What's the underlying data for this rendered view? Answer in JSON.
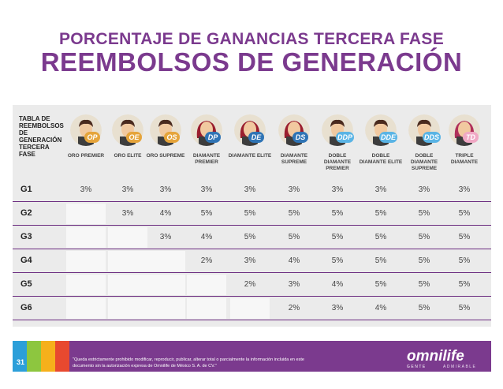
{
  "title": {
    "line1": "PORCENTAJE DE GANANCIAS TERCERA FASE",
    "line2": "REEMBOLSOS DE GENERACIÓN"
  },
  "table": {
    "corner_label": "TABLA DE REEMBOLSOS DE GENERACIÓN TERCERA FASE",
    "columns": [
      {
        "badge": "OP",
        "label": "ORO PREMIER",
        "avatar": "man-icon",
        "color": "#e5a43b"
      },
      {
        "badge": "OE",
        "label": "ORO ELITE",
        "avatar": "man-icon",
        "color": "#e5a43b"
      },
      {
        "badge": "OS",
        "label": "ORO SUPREME",
        "avatar": "man-icon",
        "color": "#e5a43b"
      },
      {
        "badge": "DP",
        "label": "DIAMANTE PREMIER",
        "avatar": "woman-icon",
        "color": "#2f74b5"
      },
      {
        "badge": "DE",
        "label": "DIAMANTE ELITE",
        "avatar": "woman-icon",
        "color": "#2f74b5"
      },
      {
        "badge": "DS",
        "label": "DIAMANTE SUPREME",
        "avatar": "woman-icon",
        "color": "#2f74b5"
      },
      {
        "badge": "DDP",
        "label": "DOBLE DIAMANTE PREMIER",
        "avatar": "man-icon",
        "color": "#5ab4e5"
      },
      {
        "badge": "DDE",
        "label": "DOBLE DIAMANTE ELITE",
        "avatar": "man-icon",
        "color": "#5ab4e5"
      },
      {
        "badge": "DDS",
        "label": "DOBLE DIAMANTE SUPREME",
        "avatar": "man-icon",
        "color": "#5ab4e5"
      },
      {
        "badge": "TD",
        "label": "TRIPLE DIAMANTE",
        "avatar": "woman-icon",
        "color": "#f0a8c4"
      }
    ],
    "rows": [
      {
        "label": "G1",
        "values": [
          "3%",
          "3%",
          "3%",
          "3%",
          "3%",
          "3%",
          "3%",
          "3%",
          "3%",
          "3%"
        ]
      },
      {
        "label": "G2",
        "values": [
          "",
          "3%",
          "4%",
          "5%",
          "5%",
          "5%",
          "5%",
          "5%",
          "5%",
          "5%"
        ]
      },
      {
        "label": "G3",
        "values": [
          "",
          "",
          "3%",
          "4%",
          "5%",
          "5%",
          "5%",
          "5%",
          "5%",
          "5%"
        ]
      },
      {
        "label": "G4",
        "values": [
          "",
          "",
          "",
          "2%",
          "3%",
          "4%",
          "5%",
          "5%",
          "5%",
          "5%"
        ]
      },
      {
        "label": "G5",
        "values": [
          "",
          "",
          "",
          "",
          "2%",
          "3%",
          "4%",
          "5%",
          "5%",
          "5%"
        ]
      },
      {
        "label": "G6",
        "values": [
          "",
          "",
          "",
          "",
          "",
          "2%",
          "3%",
          "4%",
          "5%",
          "5%"
        ]
      }
    ]
  },
  "footer": {
    "page_number": "31",
    "disclaimer": "\"Queda estrictamente prohibido modificar, reproducir, publicar, alterar total o parcialmente la información incluida en este documento sin la autorización expresa de Omnilife de México S. A. de CV.\"",
    "logo_text": "omnilife",
    "logo_sub1": "GENTE",
    "logo_sub2": "ADMIRABLE",
    "block_colors": [
      "#2c9fd9",
      "#8dc63f",
      "#f6b01b",
      "#e8492f",
      "#9c3f97"
    ]
  }
}
